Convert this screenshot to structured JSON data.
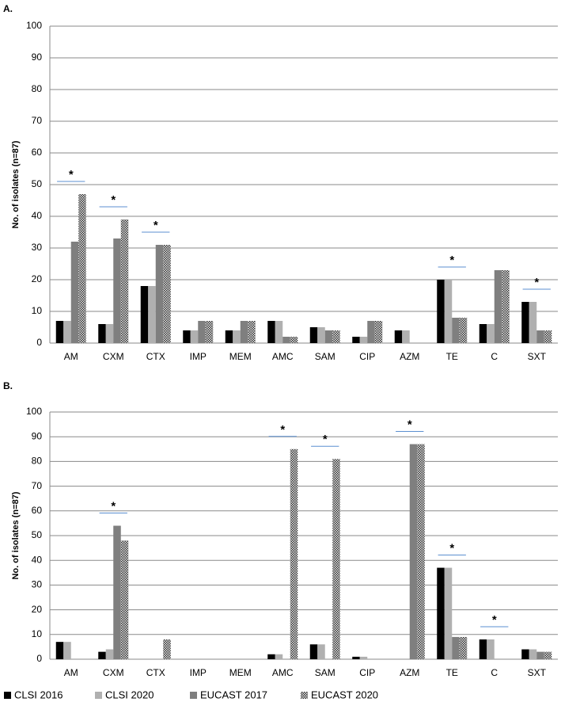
{
  "chart_data": [
    {
      "type": "bar",
      "label": "A.",
      "ylabel": "No. of isolates (n=87)",
      "categories": [
        "AM",
        "CXM",
        "CTX",
        "IMP",
        "MEM",
        "AMC",
        "SAM",
        "CIP",
        "AZM",
        "TE",
        "C",
        "SXT"
      ],
      "series": [
        {
          "color": "#000000",
          "values": [
            7,
            6,
            18,
            4,
            4,
            7,
            5,
            2,
            4,
            20,
            6,
            13
          ]
        },
        {
          "color": "#b0b0b0",
          "values": [
            7,
            6,
            18,
            4,
            4,
            7,
            5,
            2,
            4,
            20,
            6,
            13
          ]
        },
        {
          "color": "#7f7f7f",
          "values": [
            32,
            33,
            31,
            7,
            7,
            2,
            4,
            7,
            0,
            8,
            23,
            4
          ]
        },
        {
          "color": "#555555",
          "pattern": "checker",
          "values": [
            47,
            39,
            31,
            7,
            7,
            2,
            4,
            7,
            0,
            8,
            23,
            4
          ]
        }
      ],
      "ylim": [
        0,
        100
      ],
      "yticks": [
        0,
        10,
        20,
        30,
        40,
        50,
        60,
        70,
        80,
        90,
        100
      ],
      "grid": true,
      "annotations": [
        {
          "text": "*",
          "category": "AM"
        },
        {
          "text": "*",
          "category": "CXM"
        },
        {
          "text": "*",
          "category": "CTX"
        },
        {
          "text": "*",
          "category": "TE"
        },
        {
          "text": "*",
          "category": "SXT"
        }
      ]
    },
    {
      "type": "bar",
      "label": "B.",
      "ylabel": "No. of isolates (n=87)",
      "categories": [
        "AM",
        "CXM",
        "CTX",
        "IMP",
        "MEM",
        "AMC",
        "SAM",
        "CIP",
        "AZM",
        "TE",
        "C",
        "SXT"
      ],
      "series": [
        {
          "name": "CLSI 2016",
          "color": "#000000",
          "values": [
            7,
            3,
            0,
            0,
            0,
            2,
            6,
            1,
            0,
            37,
            8,
            4
          ]
        },
        {
          "name": "CLSI 2020",
          "color": "#b0b0b0",
          "values": [
            7,
            4,
            0,
            0,
            0,
            2,
            6,
            1,
            0,
            37,
            8,
            4
          ]
        },
        {
          "name": "EUCAST 2017",
          "color": "#7f7f7f",
          "values": [
            0,
            54,
            0,
            0,
            0,
            0,
            0,
            0,
            87,
            9,
            0,
            3
          ]
        },
        {
          "name": "EUCAST 2020",
          "color": "#555555",
          "pattern": "checker",
          "values": [
            0,
            48,
            8,
            0,
            0,
            85,
            81,
            0,
            87,
            9,
            0,
            3
          ]
        }
      ],
      "ylim": [
        0,
        100
      ],
      "yticks": [
        0,
        10,
        20,
        30,
        40,
        50,
        60,
        70,
        80,
        90,
        100
      ],
      "grid": true,
      "legend": "bottom",
      "annotations": [
        {
          "text": "*",
          "category": "CXM"
        },
        {
          "text": "*",
          "category": "AMC"
        },
        {
          "text": "*",
          "category": "SAM"
        },
        {
          "text": "*",
          "category": "AZM"
        },
        {
          "text": "*",
          "category": "TE"
        },
        {
          "text": "*",
          "category": "C"
        }
      ]
    }
  ]
}
